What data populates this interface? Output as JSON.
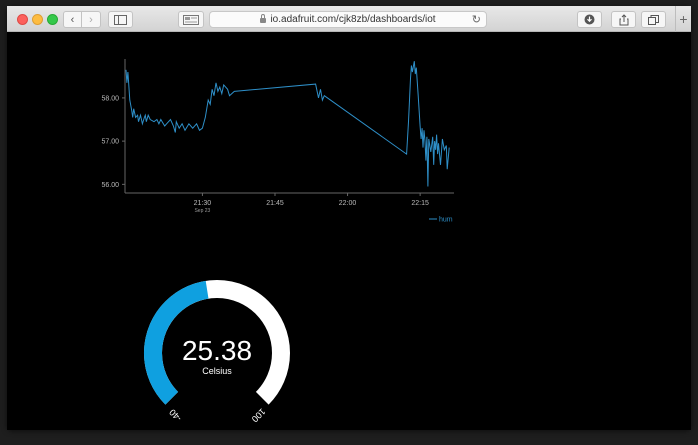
{
  "browser": {
    "url": "io.adafruit.com/cjk8zb/dashboards/iot",
    "reload_glyph": "↻",
    "back_glyph": "‹",
    "forward_glyph": "›",
    "new_tab_glyph": "+"
  },
  "chart_data": {
    "type": "line",
    "title": "",
    "xlabel": "",
    "ylabel": "",
    "ylim": [
      55.8,
      58.9
    ],
    "y_ticks": [
      "58.00",
      "57.00",
      "56.00"
    ],
    "x_ticks": [
      {
        "label": "21:30",
        "sub": "Sep 23"
      },
      {
        "label": "21:45",
        "sub": ""
      },
      {
        "label": "22:00",
        "sub": ""
      },
      {
        "label": "22:15",
        "sub": ""
      }
    ],
    "legend": {
      "placement": "bottom-right"
    },
    "series": [
      {
        "name": "hum",
        "color": "#2e8fc8",
        "points": [
          [
            "21:14:12",
            58.65
          ],
          [
            "21:14:24",
            58.35
          ],
          [
            "21:14:36",
            58.6
          ],
          [
            "21:15:00",
            57.95
          ],
          [
            "21:15:24",
            57.7
          ],
          [
            "21:15:36",
            57.55
          ],
          [
            "21:15:48",
            57.75
          ],
          [
            "21:16:12",
            57.55
          ],
          [
            "21:16:36",
            57.6
          ],
          [
            "21:16:48",
            57.45
          ],
          [
            "21:17:12",
            57.6
          ],
          [
            "21:17:36",
            57.4
          ],
          [
            "21:18:00",
            57.55
          ],
          [
            "21:18:12",
            57.6
          ],
          [
            "21:18:24",
            57.45
          ],
          [
            "21:18:48",
            57.6
          ],
          [
            "21:19:12",
            57.5
          ],
          [
            "21:20:00",
            57.45
          ],
          [
            "21:20:36",
            57.5
          ],
          [
            "21:21:00",
            57.4
          ],
          [
            "21:21:24",
            57.5
          ],
          [
            "21:22:12",
            57.35
          ],
          [
            "21:22:36",
            57.4
          ],
          [
            "21:23:24",
            57.5
          ],
          [
            "21:24:00",
            57.35
          ],
          [
            "21:24:24",
            57.2
          ],
          [
            "21:24:36",
            57.45
          ],
          [
            "21:25:12",
            57.3
          ],
          [
            "21:25:48",
            57.4
          ],
          [
            "21:26:24",
            57.25
          ],
          [
            "21:27:12",
            57.4
          ],
          [
            "21:28:00",
            57.3
          ],
          [
            "21:28:48",
            57.4
          ],
          [
            "21:29:24",
            57.25
          ],
          [
            "21:30:00",
            57.3
          ],
          [
            "21:30:36",
            57.55
          ],
          [
            "21:31:12",
            57.95
          ],
          [
            "21:31:36",
            57.85
          ],
          [
            "21:32:00",
            58.2
          ],
          [
            "21:32:24",
            58.05
          ],
          [
            "21:32:48",
            58.35
          ],
          [
            "21:33:12",
            58.15
          ],
          [
            "21:33:36",
            58.25
          ],
          [
            "21:34:00",
            58.1
          ],
          [
            "21:34:24",
            58.3
          ],
          [
            "21:35:12",
            58.2
          ],
          [
            "21:35:36",
            58.05
          ],
          [
            "21:36:36",
            58.15
          ],
          [
            "21:53:24",
            58.32
          ],
          [
            "21:54:00",
            58.0
          ],
          [
            "21:54:24",
            58.2
          ],
          [
            "21:54:48",
            57.95
          ],
          [
            "21:55:12",
            58.05
          ],
          [
            "22:12:12",
            56.7
          ],
          [
            "22:12:36",
            57.45
          ],
          [
            "22:13:00",
            58.45
          ],
          [
            "22:13:12",
            58.75
          ],
          [
            "22:13:24",
            58.6
          ],
          [
            "22:13:48",
            58.85
          ],
          [
            "22:14:00",
            58.55
          ],
          [
            "22:14:12",
            58.7
          ],
          [
            "22:14:36",
            58.05
          ],
          [
            "22:15:00",
            57.35
          ],
          [
            "22:15:12",
            57.05
          ],
          [
            "22:15:24",
            57.3
          ],
          [
            "22:15:36",
            56.85
          ],
          [
            "22:15:48",
            57.25
          ],
          [
            "22:16:00",
            57.0
          ],
          [
            "22:16:12",
            56.55
          ],
          [
            "22:16:24",
            57.1
          ],
          [
            "22:16:36",
            55.95
          ],
          [
            "22:16:48",
            57.05
          ],
          [
            "22:17:12",
            56.75
          ],
          [
            "22:17:36",
            57.1
          ],
          [
            "22:17:48",
            56.45
          ],
          [
            "22:18:00",
            57.0
          ],
          [
            "22:18:12",
            56.8
          ],
          [
            "22:18:24",
            57.15
          ],
          [
            "22:18:36",
            56.7
          ],
          [
            "22:18:48",
            56.95
          ],
          [
            "22:19:12",
            56.45
          ],
          [
            "22:19:36",
            57.05
          ],
          [
            "22:20:00",
            56.8
          ],
          [
            "22:20:24",
            56.9
          ],
          [
            "22:20:36",
            56.35
          ],
          [
            "22:21:00",
            56.85
          ]
        ]
      }
    ]
  },
  "gauge": {
    "value": "25.38",
    "value_number": 25.38,
    "unit": "Celsius",
    "min_label": "-40",
    "max_label": "100",
    "min": -40,
    "max": 100,
    "fill_color": "#0fa0e0",
    "track_color": "#ffffff"
  }
}
